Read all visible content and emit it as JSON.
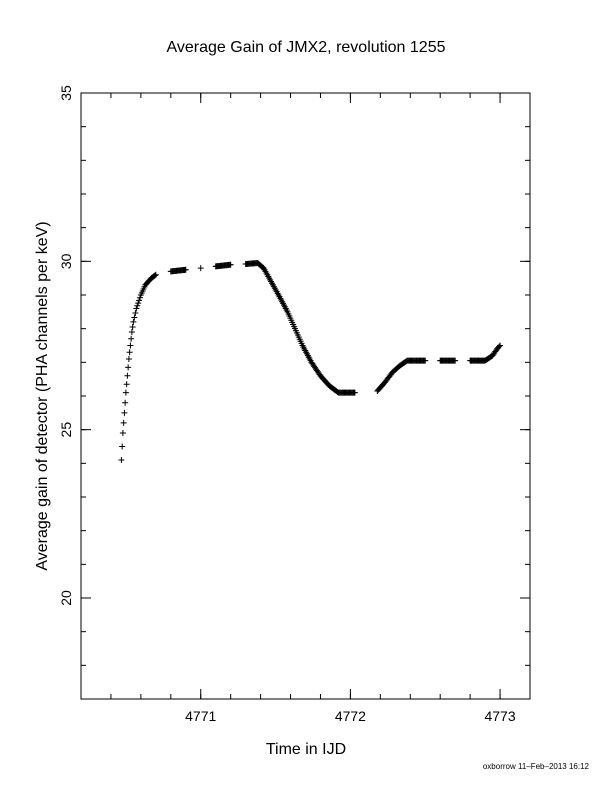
{
  "chart_data": {
    "type": "scatter",
    "title": "Average Gain of JMX2, revolution 1255",
    "xlabel": "Time in IJD",
    "ylabel": "Average gain of detector (PHA channels per keV)",
    "xlim": [
      4770.2,
      4773.2
    ],
    "ylim": [
      17,
      35
    ],
    "xticks": [
      4771,
      4772,
      4773
    ],
    "xtick_labels": [
      "4771",
      "4772",
      "4773"
    ],
    "xminor_step": 0.2,
    "yticks": [
      20,
      25,
      30,
      35
    ],
    "ytick_labels": [
      "20",
      "25",
      "30",
      "35"
    ],
    "yminor_step": 1,
    "marker": "plus",
    "grid": false,
    "series": [
      {
        "x": [
          4770.47,
          4770.48,
          4770.49,
          4770.5,
          4770.51,
          4770.52,
          4770.53,
          4770.54,
          4770.55,
          4770.57,
          4770.6,
          4770.63,
          4770.67,
          4770.7,
          4770.8,
          4770.9,
          4771.0,
          4771.1,
          4771.2,
          4771.3,
          4771.38,
          4771.42,
          4771.47,
          4771.52,
          4771.58,
          4771.63,
          4771.68,
          4771.74,
          4771.8,
          4771.86,
          4771.92,
          4771.97,
          4772.03,
          4772.18,
          4772.23,
          4772.28,
          4772.33,
          4772.38,
          4772.43,
          4772.5,
          4772.6,
          4772.7,
          4772.8,
          4772.9,
          4772.95,
          4772.98,
          4773.0
        ],
        "y": [
          24.1,
          24.9,
          25.5,
          26.1,
          26.6,
          27.1,
          27.5,
          27.9,
          28.2,
          28.6,
          29.0,
          29.3,
          29.5,
          29.6,
          29.7,
          29.75,
          29.8,
          29.85,
          29.9,
          29.92,
          29.95,
          29.8,
          29.4,
          29.0,
          28.5,
          28.0,
          27.5,
          27.0,
          26.6,
          26.3,
          26.1,
          26.1,
          26.1,
          26.15,
          26.4,
          26.7,
          26.9,
          27.05,
          27.05,
          27.05,
          27.05,
          27.05,
          27.05,
          27.05,
          27.2,
          27.4,
          27.5
        ]
      }
    ]
  },
  "footer": {
    "credit": "oxborrow 11–Feb–2013 16:12"
  }
}
